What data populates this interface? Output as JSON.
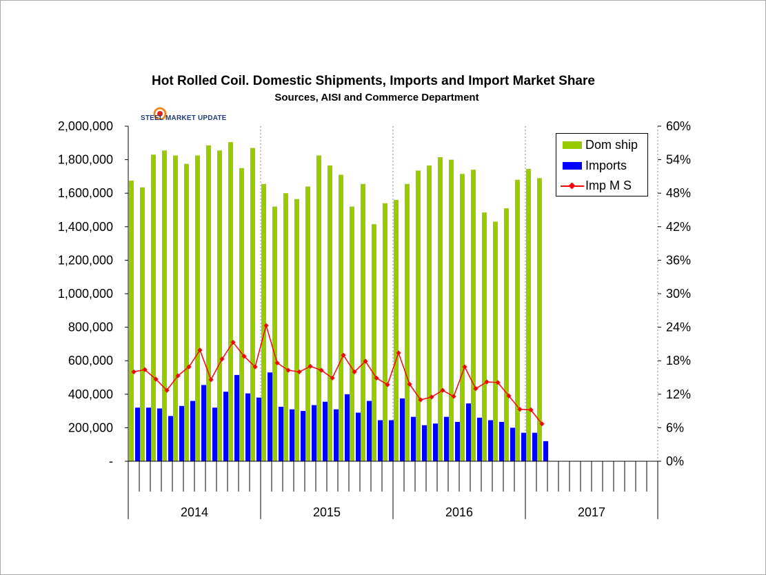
{
  "chart_data": {
    "type": "bar",
    "title": "Hot Rolled Coil. Domestic Shipments, Imports and Import Market Share",
    "subtitle": "Sources, AISI and Commerce Department",
    "logo_text": "STEEL MARKET UPDATE",
    "years": [
      "2014",
      "2015",
      "2016",
      "2017"
    ],
    "months_per_year": 12,
    "left_axis": {
      "ylim": [
        0,
        2000000
      ],
      "ticks": [
        0,
        200000,
        400000,
        600000,
        800000,
        1000000,
        1200000,
        1400000,
        1600000,
        1800000,
        2000000
      ],
      "tick_labels": [
        "-",
        "200,000",
        "400,000",
        "600,000",
        "800,000",
        "1,000,000",
        "1,200,000",
        "1,400,000",
        "1,600,000",
        "1,800,000",
        "2,000,000"
      ]
    },
    "right_axis": {
      "ylim": [
        0,
        60
      ],
      "ticks": [
        0,
        6,
        12,
        18,
        24,
        30,
        36,
        42,
        48,
        54,
        60
      ],
      "tick_labels": [
        "0%",
        "6%",
        "12%",
        "18%",
        "24%",
        "30%",
        "36%",
        "42%",
        "48%",
        "54%",
        "60%"
      ]
    },
    "series": [
      {
        "name": "Dom ship",
        "type": "bar",
        "axis": "left",
        "color": "#99cc00",
        "values": [
          1675000,
          1635000,
          1830000,
          1855000,
          1825000,
          1775000,
          1825000,
          1885000,
          1855000,
          1905000,
          1750000,
          1870000,
          1655000,
          1520000,
          1600000,
          1565000,
          1640000,
          1825000,
          1765000,
          1710000,
          1520000,
          1655000,
          1415000,
          1540000,
          1560000,
          1655000,
          1735000,
          1765000,
          1815000,
          1800000,
          1715000,
          1740000,
          1485000,
          1430000,
          1510000,
          1680000,
          1745000,
          1690000
        ]
      },
      {
        "name": "Imports",
        "type": "bar",
        "axis": "left",
        "color": "#0000ff",
        "values": [
          320000,
          320000,
          315000,
          270000,
          330000,
          360000,
          455000,
          320000,
          415000,
          515000,
          405000,
          380000,
          530000,
          325000,
          310000,
          300000,
          335000,
          355000,
          310000,
          400000,
          290000,
          360000,
          245000,
          245000,
          375000,
          265000,
          215000,
          225000,
          265000,
          235000,
          345000,
          260000,
          245000,
          235000,
          200000,
          170000,
          170000,
          120000
        ]
      },
      {
        "name": "Imp M S",
        "type": "line",
        "axis": "right",
        "color": "#ff0000",
        "values": [
          16.0,
          16.4,
          14.7,
          12.7,
          15.3,
          16.9,
          19.9,
          14.6,
          18.3,
          21.3,
          18.8,
          16.9,
          24.3,
          17.6,
          16.3,
          16.0,
          17.0,
          16.3,
          14.9,
          19.0,
          16.0,
          17.9,
          14.9,
          13.7,
          19.4,
          13.8,
          11.0,
          11.5,
          12.7,
          11.6,
          16.9,
          13.0,
          14.2,
          14.1,
          11.7,
          9.3,
          9.2,
          6.7
        ]
      }
    ]
  }
}
